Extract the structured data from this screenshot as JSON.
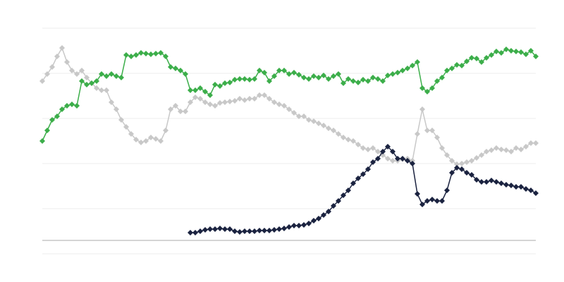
{
  "chart_data": {
    "type": "line",
    "ylim": [
      0,
      320
    ],
    "yticks": [
      0,
      64,
      128,
      192,
      256,
      320
    ],
    "grid": true,
    "series": [
      {
        "color": "#c8c8c8",
        "values": [
          245,
          255,
          265,
          280,
          292,
          272,
          260,
          255,
          260,
          250,
          242,
          235,
          232,
          232,
          215,
          205,
          190,
          180,
          170,
          162,
          158,
          160,
          165,
          163,
          160,
          175,
          205,
          210,
          202,
          202,
          215,
          222,
          220,
          215,
          212,
          210,
          214,
          215,
          216,
          217,
          220,
          218,
          220,
          220,
          225,
          225,
          220,
          215,
          212,
          210,
          205,
          200,
          195,
          195,
          190,
          188,
          185,
          182,
          178,
          175,
          170,
          165,
          162,
          160,
          155,
          150,
          148,
          150,
          145,
          140,
          135,
          132,
          132,
          134,
          135,
          132,
          170,
          205,
          175,
          175,
          165,
          150,
          140,
          132,
          127,
          128,
          130,
          132,
          136,
          140,
          145,
          147,
          150,
          148,
          147,
          145,
          150,
          148,
          152,
          157,
          157
        ]
      },
      {
        "color": "#3cae4a",
        "values": [
          160,
          175,
          190,
          195,
          205,
          210,
          212,
          210,
          245,
          240,
          242,
          245,
          255,
          252,
          255,
          252,
          250,
          282,
          280,
          282,
          285,
          284,
          283,
          284,
          285,
          280,
          265,
          263,
          260,
          255,
          232,
          232,
          235,
          230,
          225,
          240,
          238,
          242,
          243,
          247,
          248,
          248,
          247,
          248,
          260,
          257,
          245,
          252,
          260,
          260,
          255,
          257,
          254,
          250,
          248,
          252,
          250,
          253,
          248,
          252,
          255,
          242,
          248,
          245,
          243,
          247,
          245,
          250,
          248,
          245,
          253,
          255,
          257,
          260,
          263,
          267,
          272,
          235,
          230,
          235,
          245,
          250,
          260,
          263,
          268,
          267,
          273,
          278,
          277,
          272,
          278,
          282,
          287,
          285,
          290,
          288,
          287,
          286,
          283,
          288,
          280
        ]
      },
      {
        "color": "#1b2340",
        "values": [
          null,
          null,
          null,
          null,
          null,
          null,
          null,
          null,
          null,
          null,
          null,
          null,
          null,
          null,
          null,
          null,
          null,
          null,
          null,
          null,
          null,
          null,
          null,
          null,
          null,
          null,
          null,
          null,
          null,
          null,
          30,
          30,
          32,
          34,
          35,
          35,
          36,
          35,
          35,
          32,
          31,
          32,
          32,
          32,
          33,
          33,
          33,
          34,
          35,
          36,
          38,
          40,
          40,
          41,
          43,
          47,
          50,
          55,
          60,
          68,
          75,
          83,
          90,
          100,
          107,
          113,
          120,
          130,
          135,
          145,
          152,
          145,
          135,
          135,
          132,
          128,
          85,
          70,
          75,
          77,
          75,
          75,
          90,
          115,
          122,
          120,
          115,
          112,
          105,
          102,
          102,
          104,
          102,
          100,
          98,
          97,
          95,
          95,
          92,
          90,
          86
        ]
      }
    ]
  }
}
